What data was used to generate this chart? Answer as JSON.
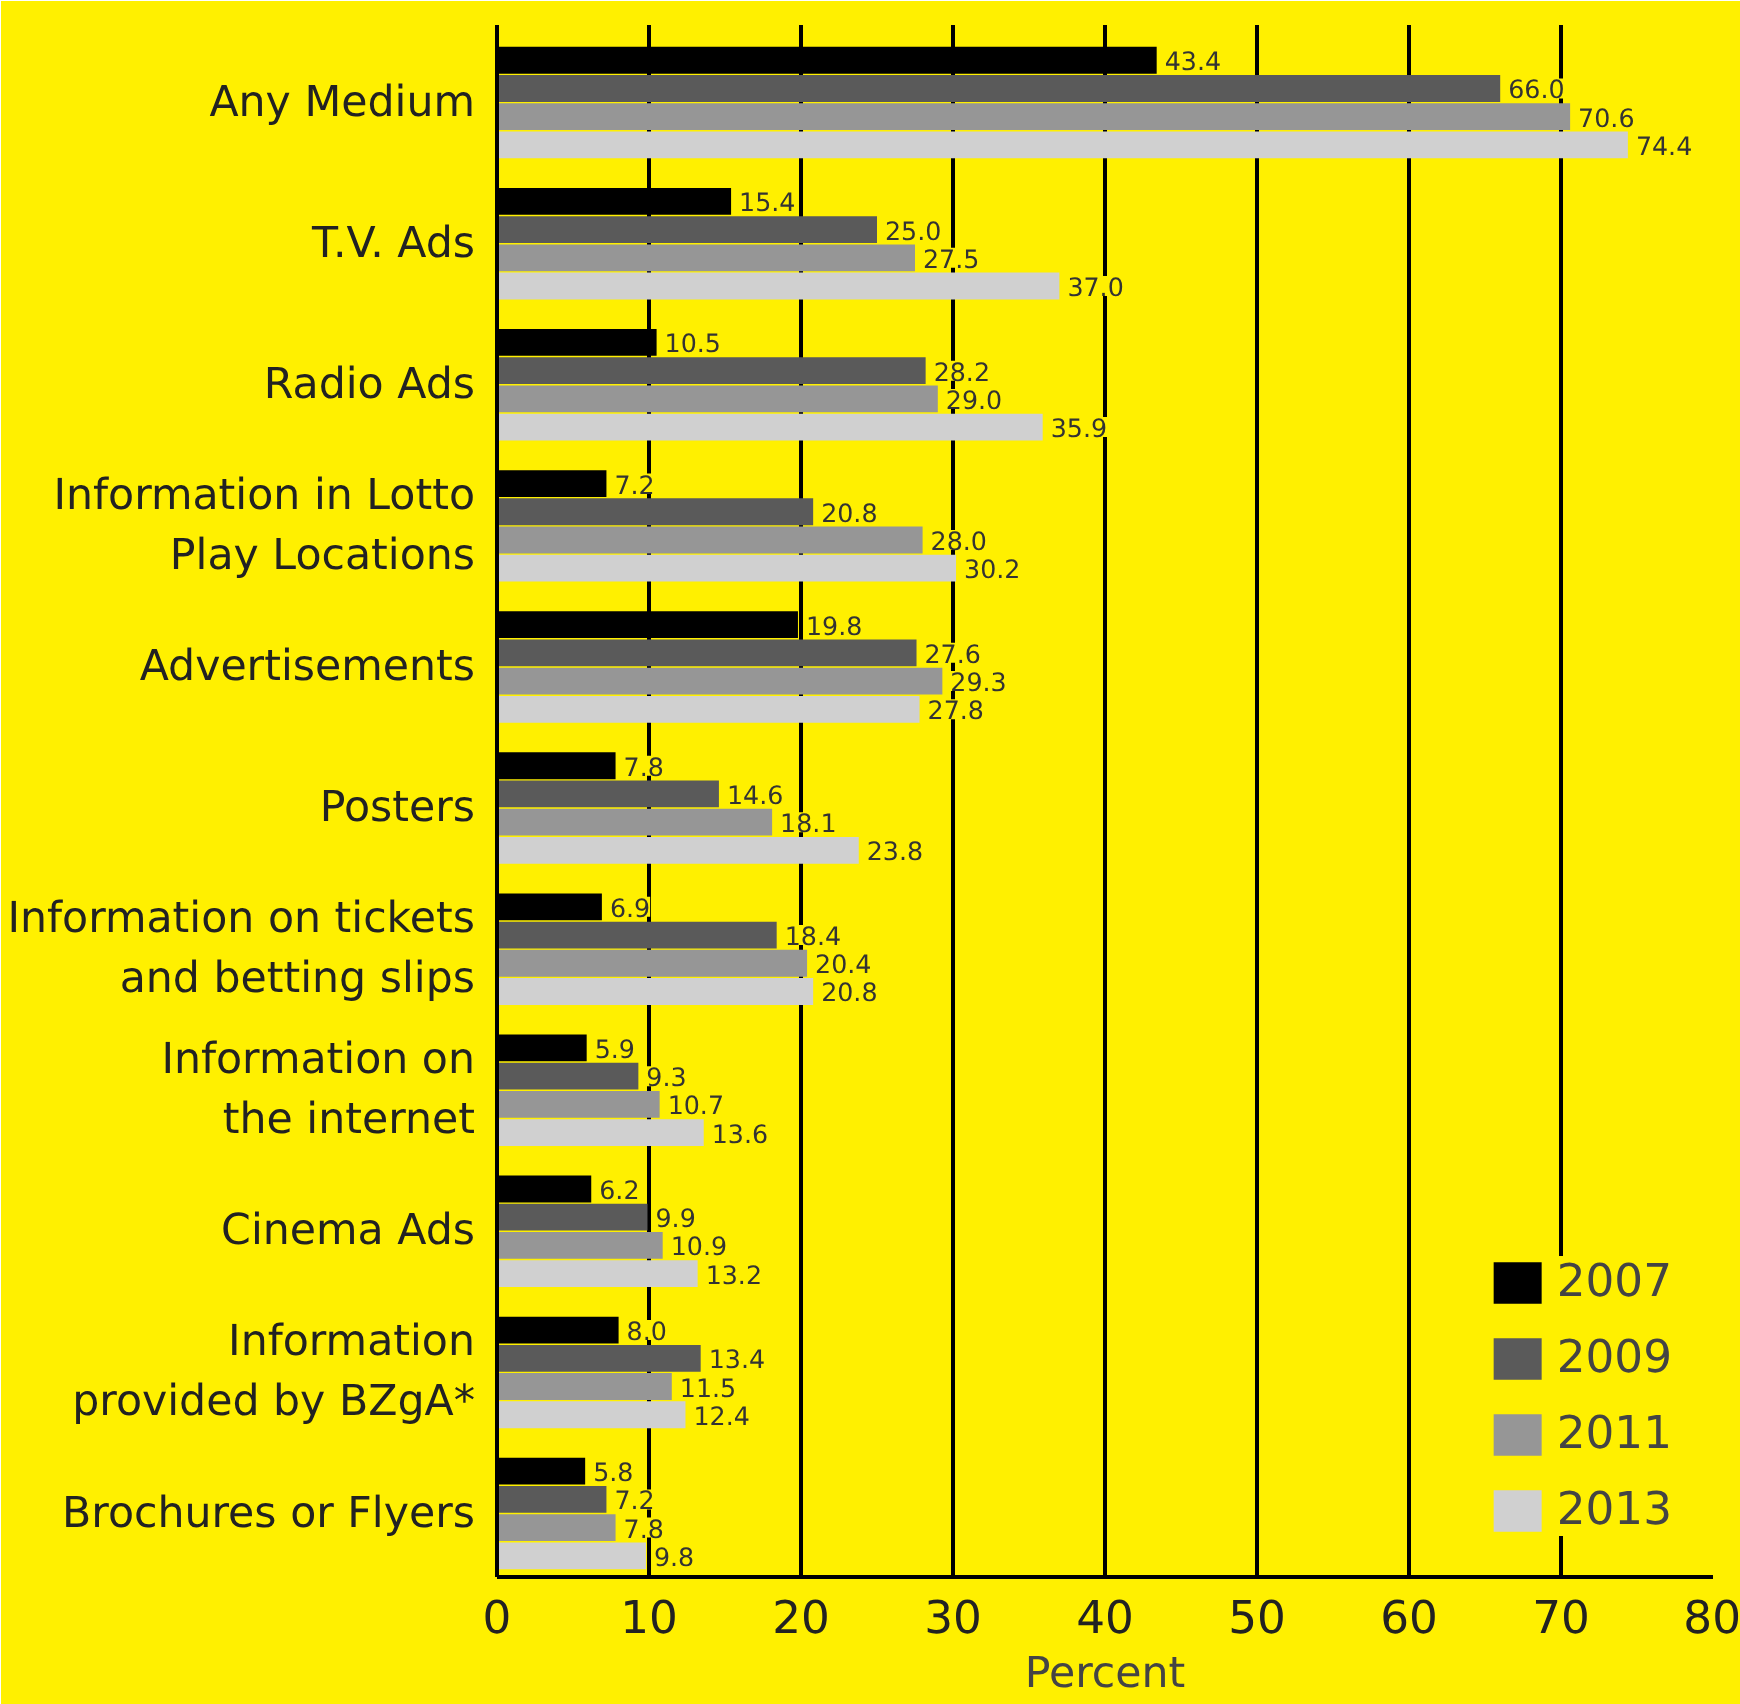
{
  "chart_data": {
    "type": "bar",
    "orientation": "horizontal",
    "xlabel": "Percent",
    "categories": [
      "Any Medium",
      "T.V. Ads",
      "Radio Ads",
      "Information in Lotto\nPlay Locations",
      "Advertisements",
      "Posters",
      "Information on tickets\nand betting slips",
      "Information on\nthe internet",
      "Cinema Ads",
      "Information\nprovided by BZgA*",
      "Brochures or Flyers"
    ],
    "series": [
      {
        "name": "2007",
        "color": "#000000",
        "values": [
          43.4,
          15.4,
          10.5,
          7.2,
          19.8,
          7.8,
          6.9,
          5.9,
          6.2,
          8.0,
          5.8
        ],
        "value_labels": [
          "43.4",
          "15.4",
          "10.5",
          "7.2",
          "19.8",
          "7.8",
          "6.9",
          "5.9",
          "6.2",
          "8.0",
          "5.8"
        ]
      },
      {
        "name": "2009",
        "color": "#5a5a5a",
        "values": [
          66.0,
          25.0,
          28.2,
          20.8,
          27.6,
          14.6,
          18.4,
          9.3,
          9.9,
          13.4,
          7.2
        ],
        "value_labels": [
          "66.0",
          "25.0",
          "28.2",
          "20.8",
          "27.6",
          "14.6",
          "18.4",
          "9.3",
          "9.9",
          "13.4",
          "7.2"
        ]
      },
      {
        "name": "2011",
        "color": "#969696",
        "values": [
          70.6,
          27.5,
          29.0,
          28.0,
          29.3,
          18.1,
          20.4,
          10.7,
          10.9,
          11.5,
          7.8
        ],
        "value_labels": [
          "70.6",
          "27.5",
          "29.0",
          "28.0",
          "29.3",
          "18.1",
          "20.4",
          "10.7",
          "10.9",
          "11.5",
          "7.8"
        ]
      },
      {
        "name": "2013",
        "color": "#d0d0d0",
        "values": [
          74.4,
          37.0,
          35.9,
          30.2,
          27.8,
          23.8,
          20.8,
          13.6,
          13.2,
          12.4,
          9.8
        ],
        "value_labels": [
          "74.4",
          "37.0",
          "35.9",
          "30.2",
          "27.8",
          "23.8",
          "20.8",
          "13.6",
          "13.2",
          "12.4",
          "9.8"
        ]
      }
    ],
    "xlim": [
      0,
      80
    ],
    "xticks": [
      0,
      10,
      20,
      30,
      40,
      50,
      60,
      70,
      80
    ],
    "grid": "x",
    "legend": "bottom right"
  }
}
